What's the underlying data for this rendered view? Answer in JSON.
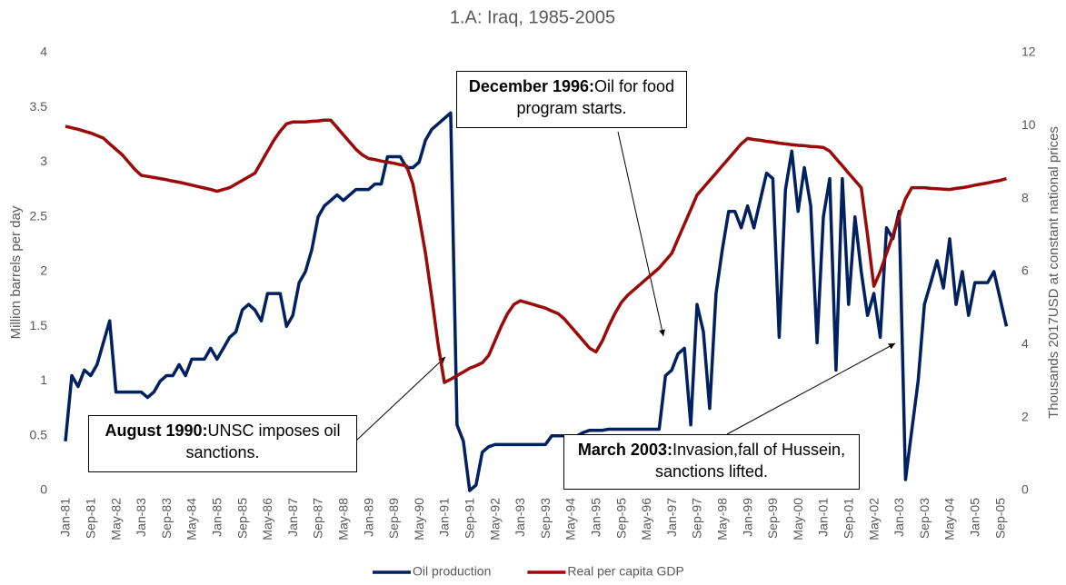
{
  "chart_data": {
    "type": "line",
    "title": "1.A: Iraq, 1985-2005",
    "y_label": "Million barrels per day",
    "y2_label": "Thousands 2017USD at constant national prices",
    "categories": [
      "Jan-81",
      null,
      null,
      null,
      "Sep-81",
      null,
      null,
      null,
      "May-82",
      null,
      null,
      null,
      "Jan-83",
      null,
      null,
      null,
      "Sep-83",
      null,
      null,
      null,
      "May-84",
      null,
      null,
      null,
      "Jan-85",
      null,
      null,
      null,
      "Sep-85",
      null,
      null,
      null,
      "May-86",
      null,
      null,
      null,
      "Jan-87",
      null,
      null,
      null,
      "Sep-87",
      null,
      null,
      null,
      "May-88",
      null,
      null,
      null,
      "Jan-89",
      null,
      null,
      null,
      "Sep-89",
      null,
      null,
      null,
      "May-90",
      null,
      null,
      null,
      "Jan-91",
      null,
      null,
      null,
      "Sep-91",
      null,
      null,
      null,
      "May-92",
      null,
      null,
      null,
      "Jan-93",
      null,
      null,
      null,
      "Sep-93",
      null,
      null,
      null,
      "May-94",
      null,
      null,
      null,
      "Jan-95",
      null,
      null,
      null,
      "Sep-95",
      null,
      null,
      null,
      "May-96",
      null,
      null,
      null,
      "Jan-97",
      null,
      null,
      null,
      "Sep-97",
      null,
      null,
      null,
      "May-98",
      null,
      null,
      null,
      "Jan-99",
      null,
      null,
      null,
      "Sep-99",
      null,
      null,
      null,
      "May-00",
      null,
      null,
      null,
      "Jan-01",
      null,
      null,
      null,
      "Sep-01",
      null,
      null,
      null,
      "May-02",
      null,
      null,
      null,
      "Jan-03",
      null,
      null,
      null,
      "Sep-03",
      null,
      null,
      null,
      "May-04",
      null,
      null,
      null,
      "Jan-05",
      null,
      null,
      null,
      "Sep-05",
      null
    ],
    "series": [
      {
        "name": "Oil production",
        "color": "#002060",
        "axis": "y",
        "values": [
          0.45,
          1.05,
          0.95,
          1.1,
          1.05,
          1.15,
          1.35,
          1.55,
          0.9,
          0.9,
          0.9,
          0.9,
          0.9,
          0.85,
          0.9,
          1.0,
          1.05,
          1.05,
          1.15,
          1.05,
          1.2,
          1.2,
          1.2,
          1.3,
          1.2,
          1.3,
          1.4,
          1.45,
          1.65,
          1.7,
          1.65,
          1.55,
          1.8,
          1.8,
          1.8,
          1.5,
          1.6,
          1.9,
          2.0,
          2.2,
          2.5,
          2.6,
          2.65,
          2.7,
          2.65,
          2.7,
          2.75,
          2.75,
          2.75,
          2.8,
          2.8,
          3.05,
          3.05,
          3.05,
          2.95,
          2.95,
          3.0,
          3.2,
          3.3,
          3.35,
          3.4,
          3.45,
          0.6,
          0.45,
          0.0,
          0.05,
          0.35,
          0.4,
          0.42,
          0.42,
          0.42,
          0.42,
          0.42,
          0.42,
          0.42,
          0.42,
          0.42,
          0.5,
          0.5,
          0.5,
          0.5,
          0.5,
          0.53,
          0.55,
          0.55,
          0.55,
          0.56,
          0.56,
          0.56,
          0.56,
          0.56,
          0.56,
          0.56,
          0.56,
          0.56,
          1.05,
          1.1,
          1.25,
          1.3,
          0.6,
          1.7,
          1.45,
          0.75,
          1.8,
          2.2,
          2.55,
          2.55,
          2.4,
          2.6,
          2.4,
          2.65,
          2.9,
          2.85,
          1.4,
          2.75,
          3.1,
          2.55,
          2.95,
          2.6,
          1.35,
          2.5,
          2.85,
          1.1,
          2.85,
          1.7,
          2.5,
          2.0,
          1.6,
          1.8,
          1.4,
          2.4,
          2.3,
          2.55,
          0.1,
          0.55,
          1.0,
          1.7,
          1.9,
          2.1,
          1.85,
          2.3,
          1.7,
          2.0,
          1.6,
          1.9,
          1.9,
          1.9,
          2.0,
          1.75,
          1.5
        ]
      },
      {
        "name": "Real per capita GDP",
        "color": "#9b0a0a",
        "axis": "y2",
        "values": [
          9.98,
          9.94,
          9.9,
          9.85,
          9.8,
          9.73,
          9.66,
          9.5,
          9.35,
          9.2,
          9.0,
          8.8,
          8.64,
          8.61,
          8.58,
          8.55,
          8.52,
          8.48,
          8.45,
          8.41,
          8.37,
          8.33,
          8.29,
          8.25,
          8.2,
          8.25,
          8.3,
          8.4,
          8.5,
          8.6,
          8.7,
          9.0,
          9.3,
          9.6,
          9.85,
          10.05,
          10.1,
          10.1,
          10.1,
          10.12,
          10.13,
          10.15,
          10.15,
          9.95,
          9.75,
          9.55,
          9.35,
          9.2,
          9.1,
          9.07,
          9.03,
          9.0,
          8.97,
          8.93,
          8.9,
          8.4,
          7.5,
          6.5,
          5.3,
          4.0,
          2.96,
          3.05,
          3.15,
          3.25,
          3.35,
          3.42,
          3.5,
          3.7,
          4.1,
          4.5,
          4.85,
          5.1,
          5.2,
          5.15,
          5.1,
          5.05,
          5.0,
          4.92,
          4.85,
          4.7,
          4.5,
          4.3,
          4.1,
          3.9,
          3.8,
          4.1,
          4.5,
          4.85,
          5.15,
          5.35,
          5.5,
          5.65,
          5.8,
          5.95,
          6.1,
          6.3,
          6.5,
          6.9,
          7.3,
          7.7,
          8.1,
          8.3,
          8.5,
          8.7,
          8.9,
          9.1,
          9.3,
          9.5,
          9.65,
          9.62,
          9.6,
          9.57,
          9.55,
          9.52,
          9.5,
          9.48,
          9.46,
          9.45,
          9.43,
          9.42,
          9.4,
          9.3,
          9.1,
          8.9,
          8.7,
          8.5,
          8.3,
          7.0,
          5.6,
          6.0,
          6.5,
          7.0,
          7.5,
          8.0,
          8.3,
          8.3,
          8.3,
          8.28,
          8.27,
          8.26,
          8.25,
          8.28,
          8.3,
          8.33,
          8.37,
          8.4,
          8.43,
          8.47,
          8.5,
          8.55
        ]
      }
    ],
    "ylim": [
      0,
      4
    ],
    "yticks": [
      0,
      0.5,
      1,
      1.5,
      2,
      2.5,
      3,
      3.5,
      4
    ],
    "y2lim": [
      0,
      12
    ],
    "y2ticks": [
      0,
      2,
      4,
      6,
      8,
      10,
      12
    ],
    "grid": false,
    "legend": "bottom",
    "annotations": [
      {
        "bold": "August 1990:",
        "text": "UNSC imposes oil sanctions."
      },
      {
        "bold": "December 1996:",
        "text": "Oil for food program starts."
      },
      {
        "bold": "March 2003:",
        "text": "Invasion,fall of Hussein, sanctions lifted."
      }
    ]
  }
}
